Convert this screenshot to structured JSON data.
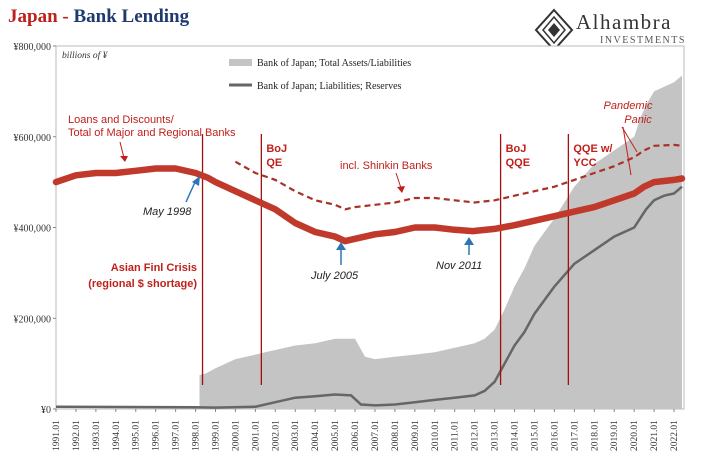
{
  "header": {
    "title_part1": "Japan",
    "title_sep": " - ",
    "title_part2": "Bank Lending"
  },
  "brand": {
    "name": "Alhambra",
    "tagline": "INVESTMENTS"
  },
  "colors": {
    "loans": "#c0392b",
    "shinkin": "#a83228",
    "total_assets_fill": "#c4c4c4",
    "reserves_line": "#666666",
    "annotation_red": "#c0201c",
    "annotation_blue": "#2e75b6",
    "event_line": "#a01010"
  },
  "chart_data": {
    "type": "area",
    "unit_label": "billions of ¥",
    "x_domain": [
      1991.0,
      2022.5
    ],
    "ylim": [
      0,
      800000
    ],
    "y_ticks": [
      0,
      200000,
      400000,
      600000,
      800000
    ],
    "y_tick_labels": [
      "¥0",
      "¥200,000",
      "¥400,000",
      "¥600,000",
      "¥800,000"
    ],
    "x_tick_labels": [
      "1991.01",
      "1992.01",
      "1993.01",
      "1994.01",
      "1995.01",
      "1996.01",
      "1997.01",
      "1998.01",
      "1999.01",
      "2000.01",
      "2001.01",
      "2002.01",
      "2003.01",
      "2004.01",
      "2005.01",
      "2006.01",
      "2007.01",
      "2008.01",
      "2009.01",
      "2010.01",
      "2011.01",
      "2012.01",
      "2013.01",
      "2014.01",
      "2015.01",
      "2016.01",
      "2017.01",
      "2018.01",
      "2019.01",
      "2020.01",
      "2021.01",
      "2022.01"
    ],
    "legend": [
      {
        "label": "Bank of Japan; Total Assets/Liabilities",
        "style": "area"
      },
      {
        "label": "Bank of Japan; Liabilities; Reserves",
        "style": "line"
      }
    ],
    "series": [
      {
        "key": "total_assets",
        "x": [
          1998.2,
          1998.5,
          1999.0,
          2000.0,
          2001.0,
          2001.5,
          2002.0,
          2003.0,
          2004.0,
          2005.0,
          2006.0,
          2006.5,
          2007.0,
          2008.0,
          2009.0,
          2010.0,
          2011.0,
          2012.0,
          2012.5,
          2013.0,
          2013.5,
          2014.0,
          2014.5,
          2015.0,
          2016.0,
          2017.0,
          2018.0,
          2019.0,
          2020.0,
          2020.3,
          2020.6,
          2021.0,
          2021.5,
          2022.0,
          2022.4
        ],
        "values": [
          75000,
          78000,
          90000,
          110000,
          120000,
          125000,
          130000,
          140000,
          145000,
          155000,
          155000,
          115000,
          110000,
          115000,
          120000,
          125000,
          135000,
          145000,
          155000,
          175000,
          220000,
          270000,
          310000,
          360000,
          420000,
          490000,
          540000,
          570000,
          600000,
          640000,
          670000,
          700000,
          710000,
          720000,
          735000
        ]
      },
      {
        "key": "reserves",
        "x": [
          1991.0,
          1998.0,
          1999.0,
          2001.0,
          2002.0,
          2003.0,
          2004.0,
          2005.0,
          2005.8,
          2006.3,
          2007.0,
          2008.0,
          2009.0,
          2010.0,
          2011.0,
          2012.0,
          2012.5,
          2013.0,
          2013.5,
          2014.0,
          2014.5,
          2015.0,
          2016.0,
          2017.0,
          2018.0,
          2019.0,
          2020.0,
          2020.3,
          2020.6,
          2021.0,
          2021.5,
          2022.0,
          2022.4
        ],
        "values": [
          5000,
          4000,
          3000,
          5000,
          15000,
          25000,
          28000,
          32000,
          30000,
          10000,
          8000,
          10000,
          15000,
          20000,
          25000,
          30000,
          40000,
          60000,
          100000,
          140000,
          170000,
          210000,
          270000,
          320000,
          350000,
          380000,
          400000,
          420000,
          440000,
          460000,
          470000,
          475000,
          490000
        ]
      },
      {
        "key": "loans",
        "name": "Loans and Discounts/ Total of Major and Regional Banks",
        "x": [
          1991.0,
          1992.0,
          1993.0,
          1994.0,
          1995.0,
          1996.0,
          1997.0,
          1998.0,
          1998.6,
          1999.0,
          2000.0,
          2001.0,
          2002.0,
          2003.0,
          2004.0,
          2005.0,
          2005.5,
          2006.0,
          2007.0,
          2008.0,
          2009.0,
          2010.0,
          2011.0,
          2011.9,
          2013.0,
          2014.0,
          2015.0,
          2016.0,
          2017.0,
          2018.0,
          2019.0,
          2020.0,
          2020.5,
          2021.0,
          2022.0,
          2022.4
        ],
        "values": [
          500000,
          515000,
          520000,
          520000,
          525000,
          530000,
          530000,
          520000,
          510000,
          500000,
          480000,
          460000,
          440000,
          410000,
          390000,
          380000,
          370000,
          375000,
          385000,
          390000,
          400000,
          400000,
          395000,
          392000,
          397000,
          405000,
          415000,
          425000,
          435000,
          445000,
          460000,
          475000,
          490000,
          500000,
          505000,
          508000
        ]
      },
      {
        "key": "shinkin",
        "name": "incl. Shinkin Banks",
        "x": [
          2000.0,
          2001.0,
          2002.0,
          2003.0,
          2004.0,
          2005.0,
          2005.5,
          2006.0,
          2007.0,
          2008.0,
          2009.0,
          2010.0,
          2011.0,
          2012.0,
          2013.0,
          2014.0,
          2015.0,
          2016.0,
          2017.0,
          2018.0,
          2019.0,
          2020.0,
          2020.5,
          2021.0,
          2022.0,
          2022.4
        ],
        "values": [
          545000,
          520000,
          505000,
          480000,
          460000,
          450000,
          440000,
          445000,
          450000,
          455000,
          465000,
          465000,
          460000,
          455000,
          460000,
          470000,
          480000,
          490000,
          505000,
          520000,
          535000,
          555000,
          570000,
          580000,
          582000,
          580000
        ]
      }
    ],
    "event_lines": [
      {
        "x": 1998.35,
        "label1": "",
        "label2": ""
      },
      {
        "x": 2001.3,
        "label1": "BoJ",
        "label2": "QE"
      },
      {
        "x": 2013.3,
        "label1": "BoJ",
        "label2": "QQE"
      },
      {
        "x": 2016.7,
        "label1": "QQE w/",
        "label2": "YCC"
      }
    ],
    "annotations": {
      "loans_label_1": "Loans and Discounts/",
      "loans_label_2": "Total of Major and Regional Banks",
      "shinkin_label": "incl. Shinkin Banks",
      "crisis_1": "Asian Finl Crisis",
      "crisis_2": "(regional $ shortage)",
      "pandemic_1": "Pandemic",
      "pandemic_2": "Panic",
      "may_1998": "May 1998",
      "july_2005": "July 2005",
      "nov_2011": "Nov 2011"
    }
  }
}
